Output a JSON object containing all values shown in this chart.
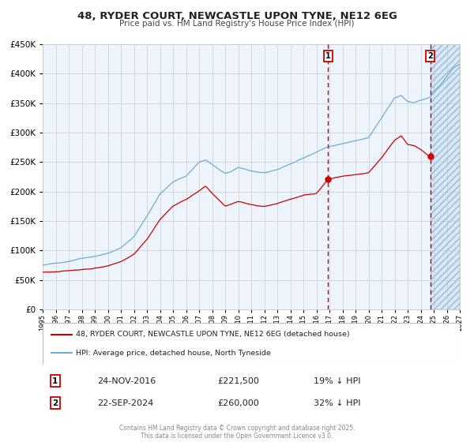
{
  "title": "48, RYDER COURT, NEWCASTLE UPON TYNE, NE12 6EG",
  "subtitle": "Price paid vs. HM Land Registry's House Price Index (HPI)",
  "hpi_color": "#6baed6",
  "price_color": "#cc0000",
  "background_color": "#ffffff",
  "plot_bg_color": "#eef4fb",
  "grid_color": "#cccccc",
  "ylim": [
    0,
    450000
  ],
  "yticks": [
    0,
    50000,
    100000,
    150000,
    200000,
    250000,
    300000,
    350000,
    400000,
    450000
  ],
  "xlim_start": 1995,
  "xlim_end": 2027,
  "vline1_x": 2016.9,
  "vline2_x": 2024.73,
  "marker1_price": 221500,
  "marker2_price": 260000,
  "legend_price_label": "48, RYDER COURT, NEWCASTLE UPON TYNE, NE12 6EG (detached house)",
  "legend_hpi_label": "HPI: Average price, detached house, North Tyneside",
  "footer": "Contains HM Land Registry data © Crown copyright and database right 2025.\nThis data is licensed under the Open Government Licence v3.0.",
  "shade_start": 2024.73,
  "shade_end": 2027,
  "table_row1": [
    "1",
    "24-NOV-2016",
    "£221,500",
    "19% ↓ HPI"
  ],
  "table_row2": [
    "2",
    "22-SEP-2024",
    "£260,000",
    "32% ↓ HPI"
  ]
}
